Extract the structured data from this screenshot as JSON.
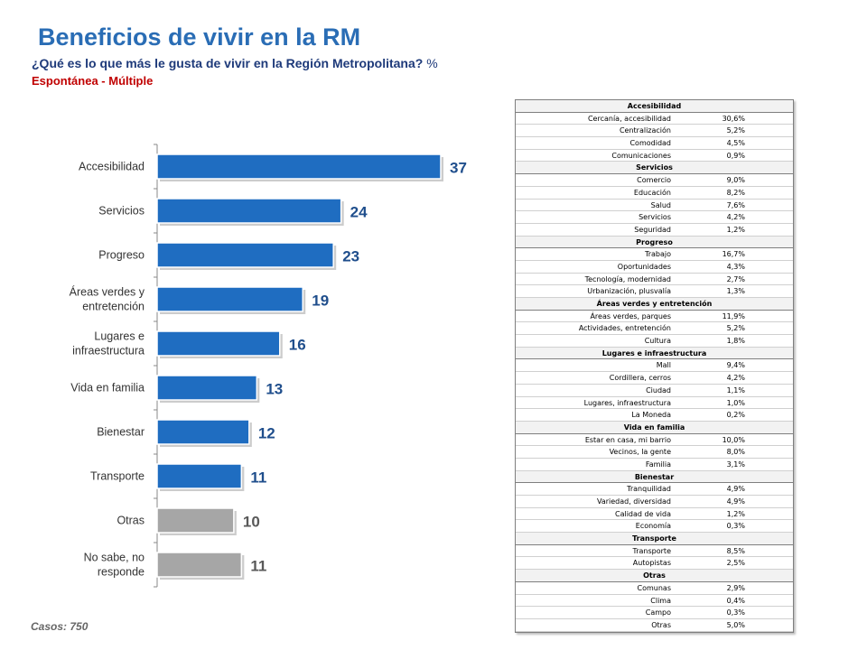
{
  "title": "Beneficios de vivir en la RM",
  "subtitle": "¿Qué es lo que más le gusta de vivir en la Región Metropolitana?",
  "unit": "%",
  "subtitle2": "Espontánea - Múltiple",
  "casos": "Casos:  750",
  "colors": {
    "primary": "#1f6dc1",
    "secondary": "#a6a6a6",
    "title": "#2a6db5",
    "accent": "#c00000"
  },
  "chart_data": {
    "type": "bar",
    "orientation": "horizontal",
    "categories": [
      "Accesibilidad",
      "Servicios",
      "Progreso",
      "Áreas verdes y entretención",
      "Lugares e infraestructura",
      "Vida en familia",
      "Bienestar",
      "Transporte",
      "Otras",
      "No sabe, no responde"
    ],
    "values": [
      37,
      24,
      23,
      19,
      16,
      13,
      12,
      11,
      10,
      11
    ],
    "colors": [
      "#1f6dc1",
      "#1f6dc1",
      "#1f6dc1",
      "#1f6dc1",
      "#1f6dc1",
      "#1f6dc1",
      "#1f6dc1",
      "#1f6dc1",
      "#a6a6a6",
      "#a6a6a6"
    ],
    "xlim": [
      0,
      40
    ],
    "grid": false
  },
  "table": [
    {
      "group": "Accesibilidad",
      "rows": [
        {
          "label": "Cercanía, accesibilidad",
          "value": "30,6%"
        },
        {
          "label": "Centralización",
          "value": "5,2%"
        },
        {
          "label": "Comodidad",
          "value": "4,5%"
        },
        {
          "label": "Comunicaciones",
          "value": "0,9%"
        }
      ]
    },
    {
      "group": "Servicios",
      "rows": [
        {
          "label": "Comercio",
          "value": "9,0%"
        },
        {
          "label": "Educación",
          "value": "8,2%"
        },
        {
          "label": "Salud",
          "value": "7,6%"
        },
        {
          "label": "Servicios",
          "value": "4,2%"
        },
        {
          "label": "Seguridad",
          "value": "1,2%"
        }
      ]
    },
    {
      "group": "Progreso",
      "rows": [
        {
          "label": "Trabajo",
          "value": "16,7%"
        },
        {
          "label": "Oportunidades",
          "value": "4,3%"
        },
        {
          "label": "Tecnología, modernidad",
          "value": "2,7%"
        },
        {
          "label": "Urbanización, plusvalía",
          "value": "1,3%"
        }
      ]
    },
    {
      "group": "Áreas verdes y entretención",
      "rows": [
        {
          "label": "Áreas verdes, parques",
          "value": "11,9%"
        },
        {
          "label": "Actividades, entretención",
          "value": "5,2%"
        },
        {
          "label": "Cultura",
          "value": "1,8%"
        }
      ]
    },
    {
      "group": "Lugares e infraestructura",
      "rows": [
        {
          "label": "Mall",
          "value": "9,4%"
        },
        {
          "label": "Cordillera, cerros",
          "value": "4,2%"
        },
        {
          "label": "Ciudad",
          "value": "1,1%"
        },
        {
          "label": "Lugares, infraestructura",
          "value": "1,0%"
        },
        {
          "label": "La Moneda",
          "value": "0,2%"
        }
      ]
    },
    {
      "group": "Vida en familia",
      "rows": [
        {
          "label": "Estar en casa, mi barrio",
          "value": "10,0%"
        },
        {
          "label": "Vecinos, la gente",
          "value": "8,0%"
        },
        {
          "label": "Familia",
          "value": "3,1%"
        }
      ]
    },
    {
      "group": "Bienestar",
      "rows": [
        {
          "label": "Tranquilidad",
          "value": "4,9%"
        },
        {
          "label": "Variedad, diversidad",
          "value": "4,9%"
        },
        {
          "label": "Calidad de vida",
          "value": "1,2%"
        },
        {
          "label": "Economía",
          "value": "0,3%"
        }
      ]
    },
    {
      "group": "Transporte",
      "rows": [
        {
          "label": "Transporte",
          "value": "8,5%"
        },
        {
          "label": "Autopistas",
          "value": "2,5%"
        }
      ]
    },
    {
      "group": "Otras",
      "rows": [
        {
          "label": "Comunas",
          "value": "2,9%"
        },
        {
          "label": "Clima",
          "value": "0,4%"
        },
        {
          "label": "Campo",
          "value": "0,3%"
        },
        {
          "label": "Otras",
          "value": "5,0%"
        }
      ]
    }
  ]
}
